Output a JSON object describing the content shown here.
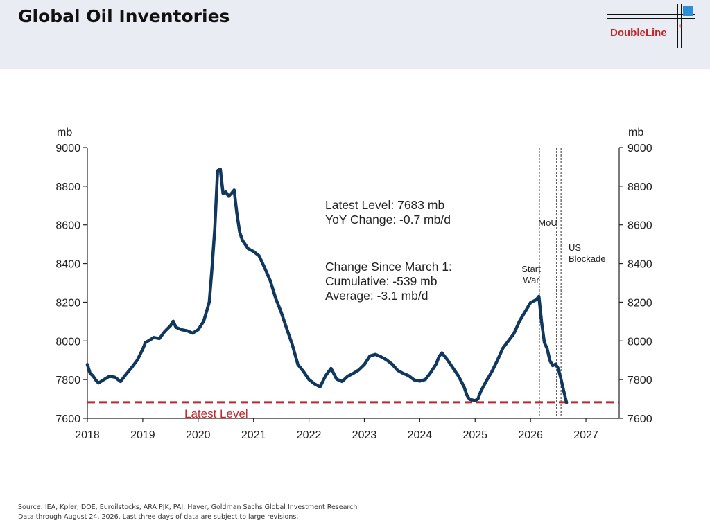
{
  "header": {
    "title": "Global Oil Inventories",
    "logo_text": "DoubleLine",
    "logo_reg": "®"
  },
  "chart_data": {
    "type": "line",
    "title": "",
    "ylabel_left": "mb",
    "ylabel_right": "mb",
    "xlim": [
      2018,
      2027.6
    ],
    "ylim": [
      7600,
      9000
    ],
    "x_ticks": [
      2018,
      2019,
      2020,
      2021,
      2022,
      2023,
      2024,
      2025,
      2026,
      2027
    ],
    "y_ticks": [
      7600,
      7800,
      8000,
      8200,
      8400,
      8600,
      8800,
      9000
    ],
    "grid": false,
    "series": [
      {
        "color": "#10375e",
        "x": [
          2018.0,
          2018.05,
          2018.1,
          2018.15,
          2018.2,
          2018.3,
          2018.4,
          2018.5,
          2018.6,
          2018.7,
          2018.8,
          2018.9,
          2019.0,
          2019.05,
          2019.1,
          2019.2,
          2019.3,
          2019.4,
          2019.5,
          2019.55,
          2019.6,
          2019.7,
          2019.8,
          2019.9,
          2020.0,
          2020.1,
          2020.2,
          2020.25,
          2020.3,
          2020.35,
          2020.4,
          2020.45,
          2020.5,
          2020.55,
          2020.6,
          2020.65,
          2020.7,
          2020.75,
          2020.8,
          2020.9,
          2021.0,
          2021.1,
          2021.2,
          2021.3,
          2021.4,
          2021.5,
          2021.6,
          2021.7,
          2021.8,
          2021.9,
          2022.0,
          2022.1,
          2022.2,
          2022.3,
          2022.4,
          2022.5,
          2022.6,
          2022.7,
          2022.8,
          2022.9,
          2023.0,
          2023.1,
          2023.2,
          2023.3,
          2023.4,
          2023.5,
          2023.6,
          2023.7,
          2023.8,
          2023.9,
          2024.0,
          2024.1,
          2024.2,
          2024.3,
          2024.35,
          2024.4,
          2024.5,
          2024.6,
          2024.7,
          2024.8,
          2024.85,
          2024.9,
          2025.0,
          2025.05,
          2025.1,
          2025.2,
          2025.3,
          2025.4,
          2025.5,
          2025.6,
          2025.7,
          2025.8,
          2025.9,
          2026.0,
          2026.1,
          2026.15,
          2026.2,
          2026.25,
          2026.3,
          2026.35,
          2026.4,
          2026.45,
          2026.5,
          2026.55,
          2026.6,
          2026.65
        ],
        "y": [
          7880,
          7830,
          7820,
          7800,
          7780,
          7800,
          7820,
          7810,
          7790,
          7830,
          7860,
          7900,
          7960,
          7990,
          8000,
          8020,
          8010,
          8050,
          8080,
          8100,
          8070,
          8060,
          8050,
          8040,
          8060,
          8100,
          8200,
          8380,
          8580,
          8880,
          8890,
          8760,
          8770,
          8750,
          8760,
          8780,
          8660,
          8560,
          8520,
          8480,
          8460,
          8440,
          8380,
          8310,
          8220,
          8150,
          8060,
          7980,
          7880,
          7840,
          7800,
          7780,
          7760,
          7820,
          7860,
          7800,
          7790,
          7820,
          7830,
          7850,
          7880,
          7920,
          7930,
          7920,
          7900,
          7880,
          7850,
          7830,
          7820,
          7800,
          7790,
          7800,
          7840,
          7880,
          7920,
          7940,
          7900,
          7860,
          7820,
          7760,
          7720,
          7700,
          7690,
          7700,
          7740,
          7790,
          7840,
          7900,
          7960,
          8000,
          8040,
          8100,
          8150,
          8200,
          8210,
          8230,
          8100,
          7990,
          7960,
          7900,
          7870,
          7880,
          7860,
          7800,
          7740,
          7683
        ]
      }
    ],
    "reference_line": {
      "y": 7683,
      "label": "Latest Level",
      "color": "#c0262d"
    },
    "event_lines": [
      {
        "x": 2026.16,
        "label": [
          "Start",
          "War"
        ]
      },
      {
        "x": 2026.47,
        "label": [
          "MoU"
        ]
      },
      {
        "x": 2026.55,
        "label": [
          "US",
          "Blockade"
        ]
      }
    ],
    "annotations": [
      {
        "lines": [
          "Latest Level: 7683 mb",
          "YoY Change: -0.7 mb/d"
        ]
      },
      {
        "lines": [
          "Change Since March 1:",
          "Cumulative: -539 mb",
          "Average: -3.1 mb/d"
        ]
      }
    ]
  },
  "footer": {
    "line1": "Source: IEA, Kpler, DOE, Euroilstocks, ARA PJK, PAJ, Haver, Goldman Sachs Global Investment Research",
    "line2": "Data through August 24, 2026. Last three days of data are subject to large revisions."
  }
}
